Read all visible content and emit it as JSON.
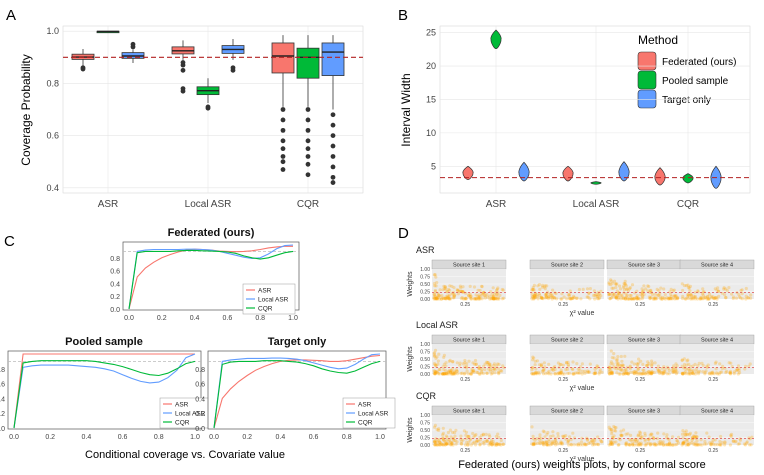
{
  "chart_data": [
    {
      "panel": "A",
      "type": "box",
      "ylabel": "Coverage Probability",
      "categories": [
        "ASR",
        "Local ASR",
        "CQR"
      ],
      "ylim": [
        0.38,
        1.02
      ],
      "yticks": [
        "0.4",
        "0.6",
        "0.8",
        "1.0"
      ],
      "yticks_v": [
        0.4,
        0.6,
        0.8,
        1.0
      ],
      "ref_line": 0.9,
      "colors": [
        "#F8766D",
        "#00BA38",
        "#619CFF"
      ],
      "boxes": [
        {
          "cat": 0,
          "grp": 0,
          "q1": 0.892,
          "med": 0.901,
          "q3": 0.912,
          "wlo": 0.868,
          "whi": 0.932,
          "out": [
            0.86,
            0.855
          ]
        },
        {
          "cat": 0,
          "grp": 2,
          "q1": 0.896,
          "med": 0.905,
          "q3": 0.918,
          "wlo": 0.878,
          "whi": 0.93,
          "out": [
            0.95,
            0.94
          ]
        },
        {
          "cat": 0,
          "grp": 1,
          "q1": 0.997,
          "med": 0.999,
          "q3": 1.0,
          "wlo": 0.997,
          "whi": 1.0,
          "out": []
        },
        {
          "cat": 1,
          "grp": 0,
          "q1": 0.913,
          "med": 0.925,
          "q3": 0.94,
          "wlo": 0.89,
          "whi": 0.965,
          "out": [
            0.85,
            0.87,
            0.88,
            0.78,
            0.77
          ]
        },
        {
          "cat": 1,
          "grp": 1,
          "q1": 0.757,
          "med": 0.772,
          "q3": 0.787,
          "wlo": 0.725,
          "whi": 0.82,
          "out": [
            0.705,
            0.71
          ]
        },
        {
          "cat": 1,
          "grp": 2,
          "q1": 0.915,
          "med": 0.93,
          "q3": 0.945,
          "wlo": 0.89,
          "whi": 0.97,
          "out": [
            0.86,
            0.85
          ]
        },
        {
          "cat": 2,
          "grp": 0,
          "q1": 0.84,
          "med": 0.905,
          "q3": 0.955,
          "wlo": 0.71,
          "whi": 0.985,
          "out": [
            0.7,
            0.66,
            0.62,
            0.58,
            0.55,
            0.52,
            0.5,
            0.47
          ]
        },
        {
          "cat": 2,
          "grp": 1,
          "q1": 0.82,
          "med": 0.9,
          "q3": 0.935,
          "wlo": 0.71,
          "whi": 0.985,
          "out": [
            0.7,
            0.66,
            0.62,
            0.58,
            0.55,
            0.52,
            0.49,
            0.45
          ]
        },
        {
          "cat": 2,
          "grp": 2,
          "q1": 0.83,
          "med": 0.92,
          "q3": 0.955,
          "wlo": 0.7,
          "whi": 0.985,
          "out": [
            0.68,
            0.64,
            0.6,
            0.56,
            0.52,
            0.48,
            0.44,
            0.42
          ]
        }
      ]
    },
    {
      "panel": "B",
      "type": "violin",
      "ylabel": "Interval Width",
      "categories": [
        "ASR",
        "Local ASR",
        "CQR"
      ],
      "ylim": [
        1,
        26
      ],
      "yticks": [
        "5",
        "10",
        "15",
        "20",
        "25"
      ],
      "yticks_v": [
        5,
        10,
        15,
        20,
        25
      ],
      "ref_line": 3.3,
      "legend_title": "Method",
      "legend": [
        "Federated (ours)",
        "Pooled sample",
        "Target only"
      ],
      "colors": [
        "#F8766D",
        "#00BA38",
        "#619CFF"
      ],
      "violins": [
        {
          "cat": 0,
          "grp": 0,
          "lo": 3.0,
          "mid": 4.0,
          "hi": 5.0
        },
        {
          "cat": 0,
          "grp": 1,
          "lo": 22.6,
          "mid": 24.0,
          "hi": 25.4
        },
        {
          "cat": 0,
          "grp": 2,
          "lo": 2.8,
          "mid": 4.0,
          "hi": 5.6
        },
        {
          "cat": 1,
          "grp": 0,
          "lo": 2.8,
          "mid": 3.9,
          "hi": 5.0
        },
        {
          "cat": 1,
          "grp": 1,
          "lo": 2.3,
          "mid": 2.5,
          "hi": 2.7
        },
        {
          "cat": 1,
          "grp": 2,
          "lo": 2.8,
          "mid": 4.0,
          "hi": 5.7
        },
        {
          "cat": 2,
          "grp": 0,
          "lo": 2.2,
          "mid": 3.3,
          "hi": 4.8
        },
        {
          "cat": 2,
          "grp": 1,
          "lo": 2.5,
          "mid": 3.2,
          "hi": 3.9
        },
        {
          "cat": 2,
          "grp": 2,
          "lo": 1.7,
          "mid": 3.2,
          "hi": 5.0
        }
      ]
    },
    {
      "panel": "C",
      "type": "line",
      "caption": "Conditional coverage vs. Covariate value",
      "xticks": [
        "0.0",
        "0.2",
        "0.4",
        "0.6",
        "0.8",
        "1.0"
      ],
      "xticks_v": [
        0,
        0.2,
        0.4,
        0.6,
        0.8,
        1.0
      ],
      "yticks": [
        "0.0",
        "0.2",
        "0.4",
        "0.6",
        "0.8"
      ],
      "yticks_v": [
        0,
        0.2,
        0.4,
        0.6,
        0.8
      ],
      "ylim": [
        0,
        1
      ],
      "ref_line": 0.9,
      "legend": [
        "ASR",
        "Local ASR",
        "CQR"
      ],
      "colors": [
        "#F8766D",
        "#619CFF",
        "#00BA38"
      ],
      "x": [
        0,
        0.05,
        0.1,
        0.15,
        0.2,
        0.25,
        0.3,
        0.35,
        0.4,
        0.45,
        0.5,
        0.55,
        0.6,
        0.65,
        0.7,
        0.75,
        0.8,
        0.85,
        0.9,
        0.95,
        1.0
      ],
      "subplots": [
        {
          "title": "Federated (ours)",
          "series": [
            {
              "name": "ASR",
              "values": [
                0.0,
                0.5,
                0.64,
                0.73,
                0.8,
                0.85,
                0.89,
                0.92,
                0.935,
                0.93,
                0.92,
                0.905,
                0.9,
                0.895,
                0.9,
                0.91,
                0.93,
                0.955,
                0.97,
                0.98,
                0.98
              ]
            },
            {
              "name": "Local ASR",
              "values": [
                0.0,
                0.9,
                0.92,
                0.93,
                0.93,
                0.93,
                0.93,
                0.935,
                0.935,
                0.93,
                0.92,
                0.9,
                0.87,
                0.84,
                0.81,
                0.79,
                0.8,
                0.86,
                0.94,
                0.99,
                1.0
              ]
            },
            {
              "name": "CQR",
              "values": [
                0.0,
                0.88,
                0.9,
                0.9,
                0.9,
                0.9,
                0.91,
                0.915,
                0.915,
                0.91,
                0.905,
                0.9,
                0.89,
                0.87,
                0.83,
                0.8,
                0.78,
                0.8,
                0.84,
                0.88,
                0.9
              ]
            }
          ]
        },
        {
          "title": "Pooled sample",
          "series": [
            {
              "name": "ASR",
              "values": [
                0.0,
                1.0,
                1.0,
                1.0,
                1.0,
                1.0,
                1.0,
                1.0,
                1.0,
                1.0,
                1.0,
                1.0,
                1.0,
                1.0,
                1.0,
                1.0,
                1.0,
                1.0,
                1.0,
                1.0,
                1.0
              ]
            },
            {
              "name": "Local ASR",
              "values": [
                0.0,
                0.82,
                0.84,
                0.85,
                0.85,
                0.85,
                0.85,
                0.84,
                0.83,
                0.82,
                0.8,
                0.77,
                0.72,
                0.67,
                0.63,
                0.61,
                0.62,
                0.68,
                0.78,
                0.95,
                1.0
              ]
            },
            {
              "name": "CQR",
              "values": [
                0.0,
                0.88,
                0.9,
                0.91,
                0.91,
                0.91,
                0.91,
                0.91,
                0.91,
                0.9,
                0.88,
                0.86,
                0.83,
                0.79,
                0.75,
                0.72,
                0.71,
                0.74,
                0.8,
                0.87,
                0.9
              ]
            }
          ]
        },
        {
          "title": "Target only",
          "series": [
            {
              "name": "ASR",
              "values": [
                0.0,
                0.4,
                0.53,
                0.63,
                0.71,
                0.78,
                0.83,
                0.87,
                0.9,
                0.915,
                0.92,
                0.92,
                0.915,
                0.91,
                0.9,
                0.9,
                0.91,
                0.93,
                0.95,
                0.97,
                0.98
              ]
            },
            {
              "name": "Local ASR",
              "values": [
                0.0,
                0.9,
                0.92,
                0.93,
                0.94,
                0.94,
                0.94,
                0.945,
                0.945,
                0.94,
                0.93,
                0.91,
                0.88,
                0.85,
                0.82,
                0.8,
                0.81,
                0.86,
                0.93,
                0.99,
                1.0
              ]
            },
            {
              "name": "CQR",
              "values": [
                0.0,
                0.86,
                0.89,
                0.9,
                0.9,
                0.9,
                0.91,
                0.91,
                0.91,
                0.9,
                0.89,
                0.87,
                0.84,
                0.8,
                0.77,
                0.75,
                0.74,
                0.77,
                0.82,
                0.87,
                0.9
              ]
            }
          ]
        }
      ]
    },
    {
      "panel": "D",
      "type": "scatter",
      "caption": "Federated (ours) weights plots, by conformal score",
      "ylabel": "Weights",
      "xlabel": "χ² value",
      "facets": [
        "Source site 1",
        "Source site 2",
        "Source site 3",
        "Source site 4"
      ],
      "rows": [
        {
          "title": "ASR",
          "densities": [
            0.9,
            0.4,
            0.8,
            0.3
          ]
        },
        {
          "title": "Local ASR",
          "densities": [
            0.8,
            0.4,
            0.8,
            0.3
          ]
        },
        {
          "title": "CQR",
          "densities": [
            0.7,
            0.4,
            0.6,
            0.3
          ]
        }
      ],
      "xtick": "0.25",
      "yticks": [
        "0.00",
        "0.25",
        "0.50",
        "0.75",
        "1.00"
      ],
      "point_color": "#FFA500",
      "ref_color": "#E05050"
    }
  ]
}
